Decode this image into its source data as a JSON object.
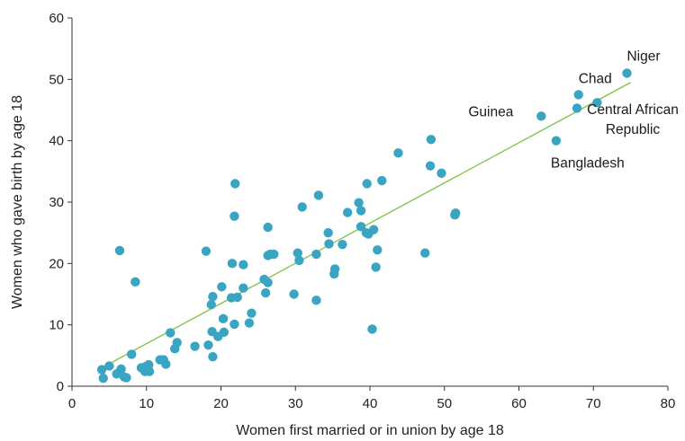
{
  "chart_data": {
    "type": "scatter",
    "xlabel": "Women first married or in union by age 18",
    "ylabel": "Women who gave birth by age 18",
    "xlim": [
      0,
      80
    ],
    "ylim": [
      0,
      60
    ],
    "x_ticks": [
      "0",
      "10",
      "20",
      "30",
      "40",
      "50",
      "60",
      "70",
      "80"
    ],
    "y_ticks": [
      "0",
      "10",
      "20",
      "30",
      "40",
      "50",
      "60"
    ],
    "grid": false,
    "point_color": "#3aa5c2",
    "trendline": {
      "color": "#7dc242",
      "from": [
        4,
        3
      ],
      "to": [
        75,
        49.5
      ]
    },
    "annotations": [
      {
        "lines": [
          "Niger"
        ],
        "x": 74.5,
        "y": 51
      },
      {
        "lines": [
          "Chad"
        ],
        "x": 68,
        "y": 47.5
      },
      {
        "lines": [
          "Guinea"
        ],
        "x": 63,
        "y": 44
      },
      {
        "lines": [
          "Central African",
          "Republic"
        ],
        "x": 70.5,
        "y": 46.2
      },
      {
        "lines": [
          "Bangladesh"
        ],
        "x": 65,
        "y": 40
      }
    ],
    "points": [
      [
        74.5,
        51
      ],
      [
        68,
        47.5
      ],
      [
        67.8,
        45.3
      ],
      [
        70.5,
        46.2
      ],
      [
        63,
        44
      ],
      [
        65,
        40
      ],
      [
        48.2,
        40.2
      ],
      [
        43.8,
        38
      ],
      [
        48.1,
        35.9
      ],
      [
        49.6,
        34.7
      ],
      [
        41.6,
        33.5
      ],
      [
        39.6,
        33
      ],
      [
        51.5,
        28.2
      ],
      [
        51.4,
        27.9
      ],
      [
        38.5,
        29.9
      ],
      [
        38.8,
        28.6
      ],
      [
        37,
        28.3
      ],
      [
        40.5,
        25.5
      ],
      [
        38.8,
        26
      ],
      [
        39.5,
        25
      ],
      [
        39.8,
        24.8
      ],
      [
        41,
        22.2
      ],
      [
        47.4,
        21.7
      ],
      [
        40.8,
        19.4
      ],
      [
        40.3,
        9.3
      ],
      [
        34.4,
        25
      ],
      [
        36.3,
        23.1
      ],
      [
        34.5,
        23.2
      ],
      [
        35.3,
        19.1
      ],
      [
        35.2,
        18.3
      ],
      [
        33.1,
        31.1
      ],
      [
        30.9,
        29.2
      ],
      [
        30.3,
        21.7
      ],
      [
        30.5,
        20.5
      ],
      [
        32.8,
        21.5
      ],
      [
        29.8,
        15
      ],
      [
        32.8,
        14
      ],
      [
        21.9,
        33
      ],
      [
        21.8,
        27.7
      ],
      [
        26.3,
        25.9
      ],
      [
        26.6,
        21.5
      ],
      [
        26.3,
        21.3
      ],
      [
        27.1,
        21.5
      ],
      [
        21.5,
        20
      ],
      [
        23,
        19.8
      ],
      [
        18,
        22
      ],
      [
        6.4,
        22.1
      ],
      [
        8.5,
        17
      ],
      [
        20.1,
        16.2
      ],
      [
        25.8,
        17.4
      ],
      [
        26.3,
        16.9
      ],
      [
        23,
        16
      ],
      [
        26,
        15.2
      ],
      [
        21.4,
        14.4
      ],
      [
        22.2,
        14.5
      ],
      [
        18.9,
        14.6
      ],
      [
        18.7,
        13.3
      ],
      [
        24.1,
        11.9
      ],
      [
        20.3,
        11
      ],
      [
        21.8,
        10.1
      ],
      [
        23.8,
        10.3
      ],
      [
        13.2,
        8.7
      ],
      [
        18.8,
        8.9
      ],
      [
        19.6,
        8.1
      ],
      [
        20.4,
        8.8
      ],
      [
        14.1,
        7.1
      ],
      [
        13.8,
        6.1
      ],
      [
        16.5,
        6.5
      ],
      [
        18.3,
        6.7
      ],
      [
        18.9,
        4.8
      ],
      [
        11.8,
        4.3
      ],
      [
        12.3,
        4.3
      ],
      [
        12.6,
        3.6
      ],
      [
        10.3,
        3.5
      ],
      [
        9.3,
        3
      ],
      [
        9.8,
        2.4
      ],
      [
        9.9,
        3.2
      ],
      [
        10.4,
        2.4
      ],
      [
        8,
        5.2
      ],
      [
        5,
        3.3
      ],
      [
        6.6,
        2.8
      ],
      [
        6.4,
        2.3
      ],
      [
        6,
        2
      ],
      [
        7,
        1.5
      ],
      [
        7.3,
        1.4
      ],
      [
        4,
        2.7
      ],
      [
        4.2,
        1.3
      ]
    ]
  }
}
